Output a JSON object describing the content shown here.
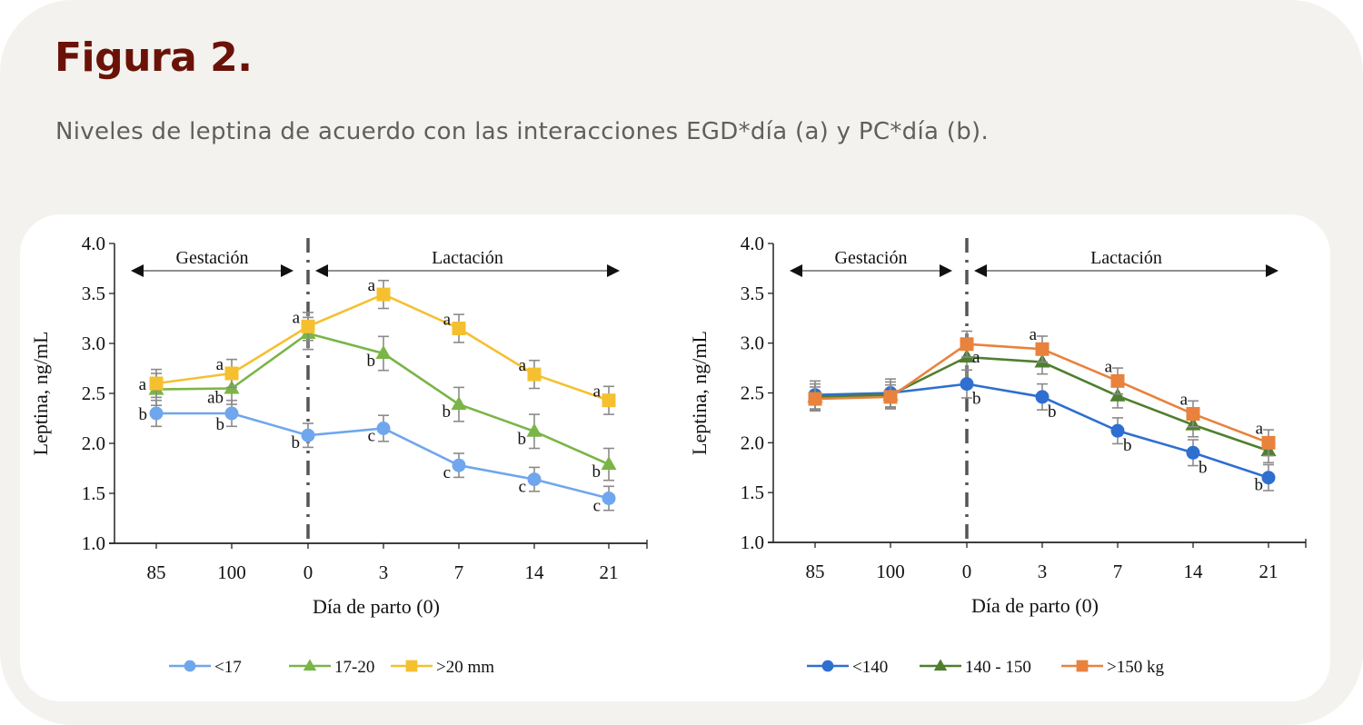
{
  "figure": {
    "title": "Figura 2.",
    "caption": "Niveles de leptina de acuerdo con las interacciones EGD*día (a) y PC*día (b).",
    "colors": {
      "title": "#6b1208",
      "caption": "#5f5f5f",
      "card_bg": "#f3f2ee",
      "panel_bg": "#ffffff"
    }
  },
  "chart_data": [
    {
      "type": "line",
      "id": "a",
      "title": "",
      "xlabel": "Día de parto (0)",
      "ylabel": "Leptina, ng/mL",
      "categories": [
        "85",
        "100",
        "0",
        "3",
        "7",
        "14",
        "21"
      ],
      "ylim": [
        1.0,
        4.0
      ],
      "yticks": [
        "1.0",
        "1.5",
        "2.0",
        "2.5",
        "3.0",
        "3.5",
        "4.0"
      ],
      "grid": false,
      "legend_position": "bottom",
      "phases": [
        {
          "label": "Gestación",
          "from": "85",
          "to": "0"
        },
        {
          "label": "Lactación",
          "from": "0",
          "to": "21"
        }
      ],
      "divider_at": "0",
      "series": [
        {
          "name": "<17",
          "color": "#6fa6ee",
          "marker": "circle",
          "values": [
            2.3,
            2.3,
            2.08,
            2.15,
            1.78,
            1.64,
            1.45
          ],
          "errors": [
            0.13,
            0.13,
            0.12,
            0.13,
            0.12,
            0.12,
            0.12
          ],
          "labels": [
            "b",
            "b",
            "b",
            "c",
            "c",
            "c",
            "c"
          ]
        },
        {
          "name": "17-20",
          "color": "#7ab547",
          "marker": "triangle",
          "values": [
            2.54,
            2.55,
            3.1,
            2.9,
            2.39,
            2.12,
            1.79
          ],
          "errors": [
            0.16,
            0.16,
            0.16,
            0.17,
            0.17,
            0.17,
            0.16
          ],
          "labels": [
            "",
            "ab",
            "",
            "b",
            "b",
            "b",
            "b"
          ]
        },
        {
          "name": ">20 mm",
          "color": "#f5c030",
          "marker": "square",
          "values": [
            2.6,
            2.7,
            3.17,
            3.49,
            3.15,
            2.69,
            2.43
          ],
          "errors": [
            0.14,
            0.14,
            0.14,
            0.14,
            0.14,
            0.14,
            0.14
          ],
          "labels": [
            "a",
            "a",
            "a",
            "a",
            "a",
            "a",
            "a"
          ]
        }
      ]
    },
    {
      "type": "line",
      "id": "b",
      "title": "",
      "xlabel": "Día de parto (0)",
      "ylabel": "Leptina, ng/mL",
      "categories": [
        "85",
        "100",
        "0",
        "3",
        "7",
        "14",
        "21"
      ],
      "ylim": [
        1.0,
        4.0
      ],
      "yticks": [
        "1.0",
        "1.5",
        "2.0",
        "2.5",
        "3.0",
        "3.5",
        "4.0"
      ],
      "grid": false,
      "legend_position": "bottom",
      "phases": [
        {
          "label": "Gestación",
          "from": "85",
          "to": "0"
        },
        {
          "label": "Lactación",
          "from": "0",
          "to": "21"
        }
      ],
      "divider_at": "0",
      "series": [
        {
          "name": "<140",
          "color": "#2e6fd0",
          "marker": "circle",
          "values": [
            2.48,
            2.5,
            2.59,
            2.46,
            2.12,
            1.9,
            1.65
          ],
          "errors": [
            0.14,
            0.14,
            0.14,
            0.13,
            0.13,
            0.13,
            0.13
          ],
          "labels": [
            "",
            "",
            "b",
            "b",
            "b",
            "b",
            "b"
          ]
        },
        {
          "name": "140 - 150",
          "color": "#4f7f2e",
          "marker": "triangle",
          "values": [
            2.46,
            2.48,
            2.86,
            2.81,
            2.47,
            2.18,
            1.92
          ],
          "errors": [
            0.13,
            0.13,
            0.13,
            0.12,
            0.12,
            0.12,
            0.12
          ],
          "labels": [
            "",
            "",
            "a",
            "",
            "",
            "",
            ""
          ]
        },
        {
          "name": ">150 kg",
          "color": "#e8823d",
          "marker": "square",
          "values": [
            2.44,
            2.46,
            2.99,
            2.94,
            2.62,
            2.29,
            2.0
          ],
          "errors": [
            0.12,
            0.12,
            0.13,
            0.13,
            0.13,
            0.13,
            0.13
          ],
          "labels": [
            "",
            "",
            "",
            "a",
            "a",
            "a",
            "a"
          ]
        }
      ]
    }
  ]
}
